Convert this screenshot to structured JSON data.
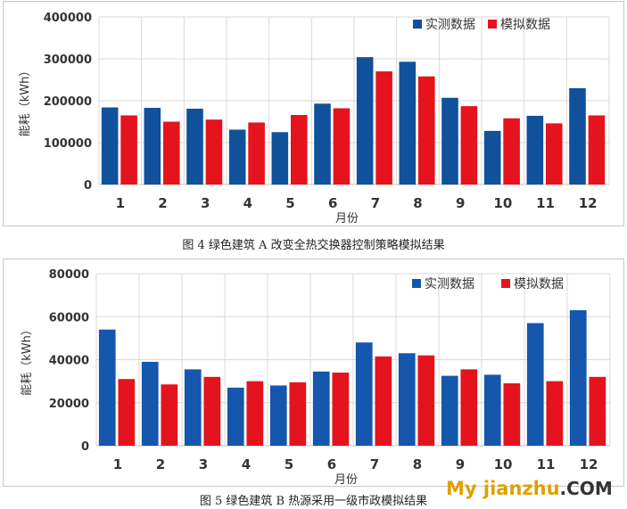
{
  "chart_data": [
    {
      "type": "bar",
      "title": "",
      "xlabel": "月份",
      "ylabel": "能耗（kWh）",
      "ylim": [
        0,
        400000
      ],
      "yticks": [
        "0",
        "100000",
        "200000",
        "300000",
        "400000"
      ],
      "ytick_values": [
        0,
        100000,
        200000,
        300000,
        400000
      ],
      "categories": [
        "1",
        "2",
        "3",
        "4",
        "5",
        "6",
        "7",
        "8",
        "9",
        "10",
        "11",
        "12"
      ],
      "series": [
        {
          "name": "实测数据",
          "color": "#0f519b",
          "values": [
            184000,
            183000,
            181000,
            131000,
            125000,
            193000,
            304000,
            293000,
            207000,
            128000,
            164000,
            230000
          ]
        },
        {
          "name": "模拟数据",
          "color": "#e5131d",
          "values": [
            165000,
            150000,
            155000,
            148000,
            166000,
            182000,
            270000,
            258000,
            187000,
            158000,
            146000,
            165000
          ]
        }
      ],
      "grid": true,
      "legend": "top-right",
      "caption": "图 4  绿色建筑 A 改变全热交换器控制策略模拟结果"
    },
    {
      "type": "bar",
      "title": "",
      "xlabel": "月份",
      "ylabel": "能耗（kWh）",
      "ylim": [
        0,
        80000
      ],
      "yticks": [
        "0",
        "20000",
        "40000",
        "60000",
        "80000"
      ],
      "ytick_values": [
        0,
        20000,
        40000,
        60000,
        80000
      ],
      "categories": [
        "1",
        "2",
        "3",
        "4",
        "5",
        "6",
        "7",
        "8",
        "9",
        "10",
        "11",
        "12"
      ],
      "series": [
        {
          "name": "实测数据",
          "color": "#1457ac",
          "values": [
            54000,
            39000,
            35500,
            27000,
            28000,
            34500,
            48000,
            43000,
            32500,
            33000,
            57000,
            63000
          ]
        },
        {
          "name": "模拟数据",
          "color": "#e5131d",
          "values": [
            31000,
            28500,
            32000,
            30000,
            29500,
            34000,
            41500,
            42000,
            35500,
            29000,
            30000,
            32000
          ]
        }
      ],
      "grid": true,
      "legend": "top-right",
      "caption": "图 5  绿色建筑 B 热源采用一级市政模拟结果"
    }
  ],
  "watermark": {
    "main": "My jianzhu",
    "suffix": ".COM"
  }
}
